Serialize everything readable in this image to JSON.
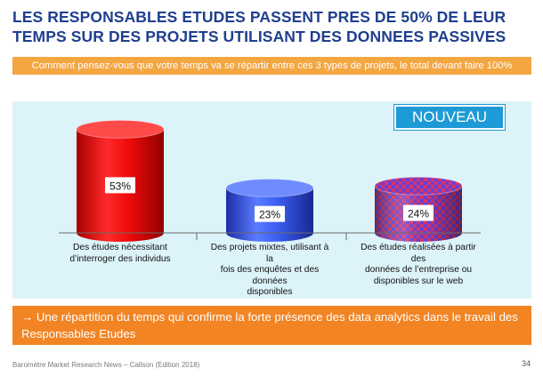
{
  "header": {
    "title_line1": "LES RESPONSABLES ETUDES PASSENT PRES DE 50% DE LEUR",
    "title_line2": "TEMPS SUR DES PROJETS UTILISANT DES DONNEES PASSIVES",
    "subtitle": "Comment pensez-vous que votre temps va se répartir entre ces 3 types de projets, le total devant faire 100%"
  },
  "badge": "NOUVEAU",
  "chart_data": {
    "type": "bar",
    "categories": [
      "Des études nécessitant d’interroger des individus",
      "Des projets mixtes, utilisant à la fois des enquêtes et des données disponibles",
      "Des études réalisées à partir des données de l’entreprise ou disponibles sur le web"
    ],
    "category_lines": [
      [
        "Des études nécessitant",
        "d’interroger des individus"
      ],
      [
        "Des projets mixtes, utilisant à la",
        "fois des enquêtes et des données",
        "disponibles"
      ],
      [
        "Des études réalisées à partir des",
        "données de l’entreprise ou",
        "disponibles sur le web"
      ]
    ],
    "values": [
      53,
      23,
      24
    ],
    "value_labels": [
      "53%",
      "23%",
      "24%"
    ],
    "unit": "%",
    "ylim": [
      0,
      55
    ],
    "grid": false,
    "colors": [
      "#e00000",
      "#2f55e0",
      "#c8306a"
    ]
  },
  "banner": {
    "text": "→ Une répartition du temps qui confirme la forte présence des data analytics dans le travail des Responsables Etudes"
  },
  "footer": {
    "source": "Baromètre Market Research News – Callson (Edition 2018)",
    "page": "34"
  }
}
